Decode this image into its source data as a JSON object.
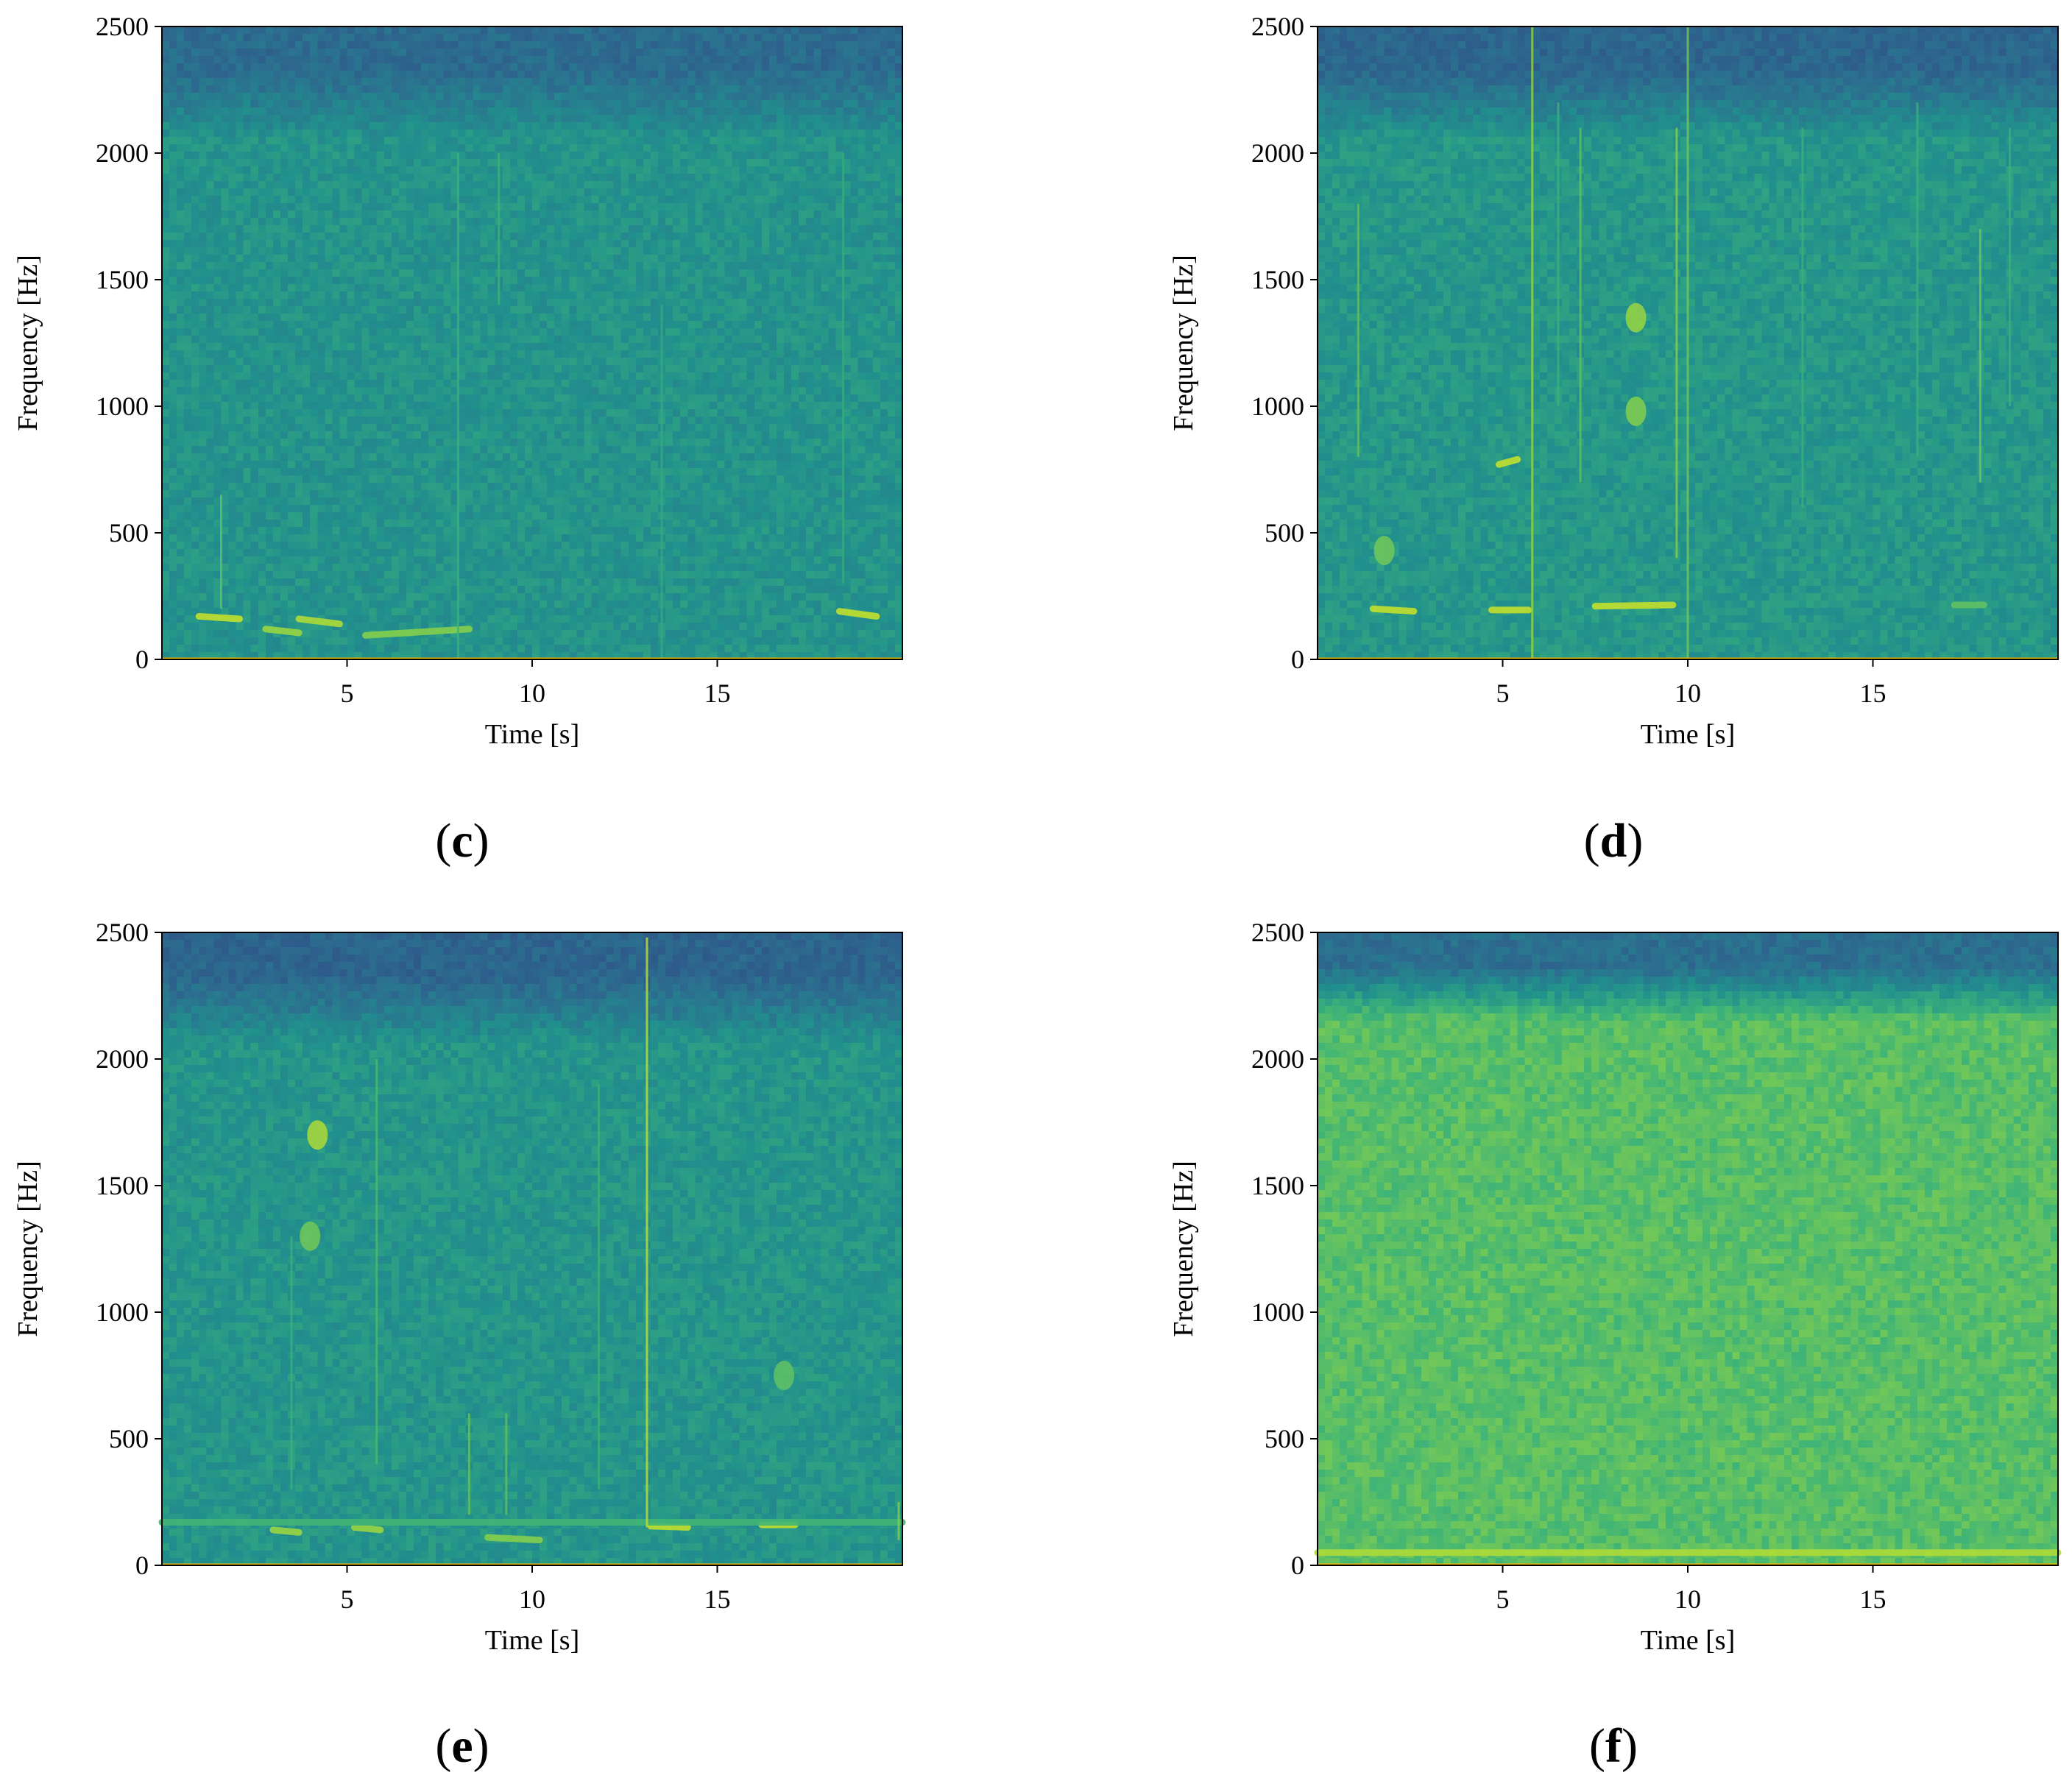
{
  "figure": {
    "panels": [
      {
        "id": "c",
        "caption_open": "(",
        "caption_letter": "c",
        "caption_close": ")"
      },
      {
        "id": "d",
        "caption_open": "(",
        "caption_letter": "d",
        "caption_close": ")"
      },
      {
        "id": "e",
        "caption_open": "(",
        "caption_letter": "e",
        "caption_close": ")"
      },
      {
        "id": "f",
        "caption_open": "(",
        "caption_letter": "f",
        "caption_close": ")"
      }
    ]
  },
  "colors": {
    "colormap": [
      "#2f4f87",
      "#2c6e8f",
      "#21908d",
      "#3bb27a",
      "#84cf4d",
      "#d8e622"
    ],
    "baseline": "#e6b800"
  },
  "chart_data": [
    {
      "panel": "c",
      "type": "heatmap",
      "subtype": "spectrogram",
      "title": "",
      "xlabel": "Time [s]",
      "ylabel": "Frequency [Hz]",
      "xlim": [
        0,
        20
      ],
      "ylim": [
        0,
        2500
      ],
      "xticks": [
        5,
        10,
        15
      ],
      "xtick_labels": [
        "5",
        "10",
        "15"
      ],
      "yticks": [
        0,
        500,
        1000,
        1500,
        2000,
        2500
      ],
      "ytick_labels": [
        "0",
        "500",
        "1000",
        "1500",
        "2000",
        "2500"
      ],
      "grid": false,
      "legend": "none",
      "band_edge_hz": 2050,
      "background_level": 0.42,
      "upper_band_level": 0.18,
      "features": [
        {
          "kind": "tone",
          "t0": 1.0,
          "t1": 2.1,
          "f0": 170,
          "f1": 160,
          "level": 0.95
        },
        {
          "kind": "tone",
          "t0": 2.8,
          "t1": 3.7,
          "f0": 120,
          "f1": 105,
          "level": 0.85
        },
        {
          "kind": "tone",
          "t0": 3.7,
          "t1": 4.8,
          "f0": 160,
          "f1": 140,
          "level": 0.9
        },
        {
          "kind": "tone",
          "t0": 5.5,
          "t1": 8.3,
          "f0": 95,
          "f1": 120,
          "level": 0.8
        },
        {
          "kind": "tone",
          "t0": 18.3,
          "t1": 19.3,
          "f0": 190,
          "f1": 170,
          "level": 0.95
        },
        {
          "kind": "streak",
          "t": 1.6,
          "f0": 200,
          "f1": 650,
          "level": 0.7
        },
        {
          "kind": "streak",
          "t": 8.0,
          "f0": 0,
          "f1": 2000,
          "level": 0.6
        },
        {
          "kind": "streak",
          "t": 9.1,
          "f0": 1400,
          "f1": 2000,
          "level": 0.6
        },
        {
          "kind": "streak",
          "t": 13.5,
          "f0": 0,
          "f1": 1400,
          "level": 0.55
        },
        {
          "kind": "streak",
          "t": 18.4,
          "f0": 300,
          "f1": 2000,
          "level": 0.55
        }
      ]
    },
    {
      "panel": "d",
      "type": "heatmap",
      "subtype": "spectrogram",
      "title": "",
      "xlabel": "Time [s]",
      "ylabel": "Frequency [Hz]",
      "xlim": [
        0,
        20
      ],
      "ylim": [
        0,
        2500
      ],
      "xticks": [
        5,
        10,
        15
      ],
      "xtick_labels": [
        "5",
        "10",
        "15"
      ],
      "yticks": [
        0,
        500,
        1000,
        1500,
        2000,
        2500
      ],
      "ytick_labels": [
        "0",
        "500",
        "1000",
        "1500",
        "2000",
        "2500"
      ],
      "grid": false,
      "legend": "none",
      "band_edge_hz": 2050,
      "background_level": 0.44,
      "upper_band_level": 0.15,
      "features": [
        {
          "kind": "tone",
          "t0": 1.5,
          "t1": 2.6,
          "f0": 200,
          "f1": 190,
          "level": 0.95
        },
        {
          "kind": "tone",
          "t0": 4.7,
          "t1": 5.7,
          "f0": 195,
          "f1": 195,
          "level": 0.95
        },
        {
          "kind": "tone",
          "t0": 4.9,
          "t1": 5.4,
          "f0": 770,
          "f1": 790,
          "level": 0.95
        },
        {
          "kind": "tone",
          "t0": 7.5,
          "t1": 9.6,
          "f0": 210,
          "f1": 215,
          "level": 0.95
        },
        {
          "kind": "tone",
          "t0": 17.2,
          "t1": 18.0,
          "f0": 215,
          "f1": 215,
          "level": 0.7
        },
        {
          "kind": "blob",
          "t": 8.6,
          "f": 1350,
          "level": 0.85
        },
        {
          "kind": "blob",
          "t": 8.6,
          "f": 980,
          "level": 0.8
        },
        {
          "kind": "blob",
          "t": 1.8,
          "f": 430,
          "level": 0.75
        },
        {
          "kind": "streak",
          "t": 1.1,
          "f0": 800,
          "f1": 1800,
          "level": 0.7
        },
        {
          "kind": "streak",
          "t": 5.8,
          "f0": 0,
          "f1": 2500,
          "level": 0.85
        },
        {
          "kind": "streak",
          "t": 6.5,
          "f0": 1000,
          "f1": 2200,
          "level": 0.6
        },
        {
          "kind": "streak",
          "t": 7.1,
          "f0": 700,
          "f1": 2100,
          "level": 0.7
        },
        {
          "kind": "streak",
          "t": 9.7,
          "f0": 400,
          "f1": 2100,
          "level": 0.8
        },
        {
          "kind": "streak",
          "t": 10.0,
          "f0": 0,
          "f1": 2500,
          "level": 0.75
        },
        {
          "kind": "streak",
          "t": 13.1,
          "f0": 600,
          "f1": 2100,
          "level": 0.6
        },
        {
          "kind": "streak",
          "t": 16.2,
          "f0": 800,
          "f1": 2200,
          "level": 0.6
        },
        {
          "kind": "streak",
          "t": 17.9,
          "f0": 700,
          "f1": 1700,
          "level": 0.75
        },
        {
          "kind": "streak",
          "t": 18.7,
          "f0": 1000,
          "f1": 2100,
          "level": 0.6
        }
      ]
    },
    {
      "panel": "e",
      "type": "heatmap",
      "subtype": "spectrogram",
      "title": "",
      "xlabel": "Time [s]",
      "ylabel": "Frequency [Hz]",
      "xlim": [
        0,
        20
      ],
      "ylim": [
        0,
        2500
      ],
      "xticks": [
        5,
        10,
        15
      ],
      "xtick_labels": [
        "5",
        "10",
        "15"
      ],
      "yticks": [
        0,
        500,
        1000,
        1500,
        2000,
        2500
      ],
      "ytick_labels": [
        "0",
        "500",
        "1000",
        "1500",
        "2000",
        "2500"
      ],
      "grid": false,
      "legend": "none",
      "band_edge_hz": 2050,
      "background_level": 0.43,
      "upper_band_level": 0.14,
      "features": [
        {
          "kind": "tone",
          "t0": 3.0,
          "t1": 3.7,
          "f0": 140,
          "f1": 130,
          "level": 0.85
        },
        {
          "kind": "tone",
          "t0": 5.2,
          "t1": 5.9,
          "f0": 150,
          "f1": 140,
          "level": 0.85
        },
        {
          "kind": "tone",
          "t0": 8.8,
          "t1": 10.2,
          "f0": 110,
          "f1": 100,
          "level": 0.8
        },
        {
          "kind": "tone",
          "t0": 13.2,
          "t1": 14.2,
          "f0": 155,
          "f1": 150,
          "level": 0.95
        },
        {
          "kind": "tone",
          "t0": 16.2,
          "t1": 17.1,
          "f0": 160,
          "f1": 160,
          "level": 0.95
        },
        {
          "kind": "tone",
          "t0": 0.0,
          "t1": 20.0,
          "f0": 170,
          "f1": 170,
          "level": 0.62
        },
        {
          "kind": "blob",
          "t": 4.2,
          "f": 1700,
          "level": 0.9
        },
        {
          "kind": "blob",
          "t": 4.0,
          "f": 1300,
          "level": 0.75
        },
        {
          "kind": "blob",
          "t": 16.8,
          "f": 750,
          "level": 0.7
        },
        {
          "kind": "streak",
          "t": 3.5,
          "f0": 300,
          "f1": 1300,
          "level": 0.6
        },
        {
          "kind": "streak",
          "t": 5.8,
          "f0": 400,
          "f1": 2000,
          "level": 0.65
        },
        {
          "kind": "streak",
          "t": 8.3,
          "f0": 200,
          "f1": 600,
          "level": 0.7
        },
        {
          "kind": "streak",
          "t": 9.3,
          "f0": 200,
          "f1": 600,
          "level": 0.7
        },
        {
          "kind": "streak",
          "t": 13.1,
          "f0": 150,
          "f1": 2480,
          "level": 0.95
        },
        {
          "kind": "streak",
          "t": 11.8,
          "f0": 300,
          "f1": 1900,
          "level": 0.6
        },
        {
          "kind": "streak",
          "t": 19.9,
          "f0": 100,
          "f1": 250,
          "level": 0.8
        }
      ]
    },
    {
      "panel": "f",
      "type": "heatmap",
      "subtype": "spectrogram",
      "title": "",
      "xlabel": "Time [s]",
      "ylabel": "Frequency [Hz]",
      "xlim": [
        0,
        20
      ],
      "ylim": [
        0,
        2500
      ],
      "xticks": [
        5,
        10,
        15
      ],
      "xtick_labels": [
        "5",
        "10",
        "15"
      ],
      "yticks": [
        0,
        500,
        1000,
        1500,
        2000,
        2500
      ],
      "ytick_labels": [
        "0",
        "500",
        "1000",
        "1500",
        "2000",
        "2500"
      ],
      "grid": false,
      "legend": "none",
      "band_edge_hz": 2150,
      "background_level": 0.68,
      "upper_band_level": 0.2,
      "features": [
        {
          "kind": "tone",
          "t0": 0.0,
          "t1": 20.0,
          "f0": 50,
          "f1": 50,
          "level": 0.9
        }
      ]
    }
  ]
}
